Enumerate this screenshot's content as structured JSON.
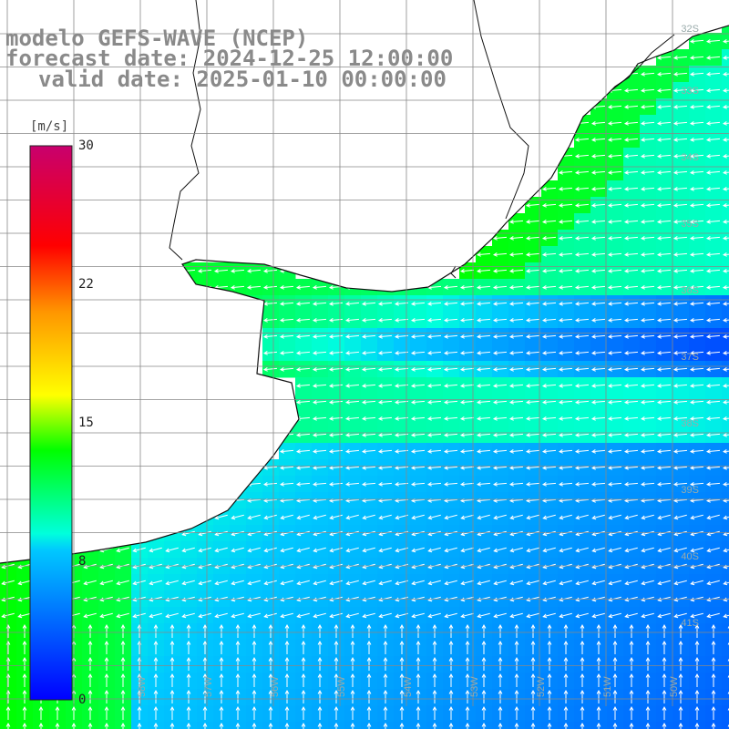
{
  "title": {
    "line1": "modelo GEFS-WAVE (NCEP)",
    "line2": "forecast date: 2024-12-25 12:00:00",
    "line3": "valid date: 2025-01-10 00:00:00"
  },
  "colorbar": {
    "unit_label": "[m/s]",
    "ticks": [
      {
        "label": "30",
        "value": 30
      },
      {
        "label": "22",
        "value": 22
      },
      {
        "label": "15",
        "value": 15
      },
      {
        "label": "8",
        "value": 8
      },
      {
        "label": "0",
        "value": 0
      }
    ],
    "colors": [
      "#0000ff",
      "#00c8ff",
      "#00ffdc",
      "#00ff00",
      "#ffff00",
      "#ff9600",
      "#ff0000",
      "#c8006e"
    ]
  },
  "map": {
    "variable": "wind speed with direction arrows",
    "land_color": "#ffffff",
    "grid_color": "#888888",
    "lat_labels": [
      "32S",
      "33S",
      "34S",
      "35S",
      "36S",
      "37S",
      "38S",
      "39S",
      "40S",
      "41S"
    ],
    "lon_labels": [
      "58W",
      "57W",
      "56W",
      "55W",
      "54W",
      "53W",
      "52W",
      "51W",
      "50W"
    ]
  }
}
